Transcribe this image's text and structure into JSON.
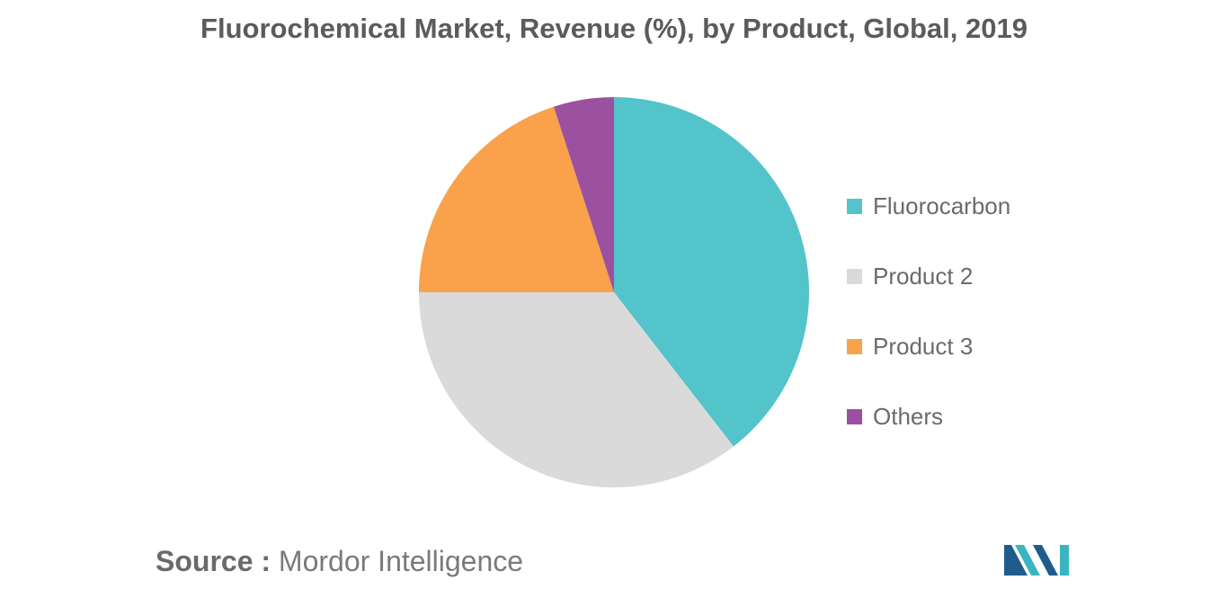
{
  "chart_data": {
    "type": "pie",
    "title": "Fluorochemical Market, Revenue (%), by Product, Global, 2019",
    "slices": [
      {
        "label": "Fluorocarbon",
        "value": 39.5,
        "color": "#52c4ca"
      },
      {
        "label": "Product 2",
        "value": 35.5,
        "color": "#dadada"
      },
      {
        "label": "Product 3",
        "value": 20.0,
        "color": "#f9a14b"
      },
      {
        "label": "Others",
        "value": 5.0,
        "color": "#9b51a0"
      }
    ],
    "legend_position": "right"
  },
  "source": {
    "label": "Source :",
    "text": "Mordor Intelligence"
  },
  "logo": {
    "colors": [
      "#1f5c8c",
      "#3ab5c0"
    ]
  }
}
